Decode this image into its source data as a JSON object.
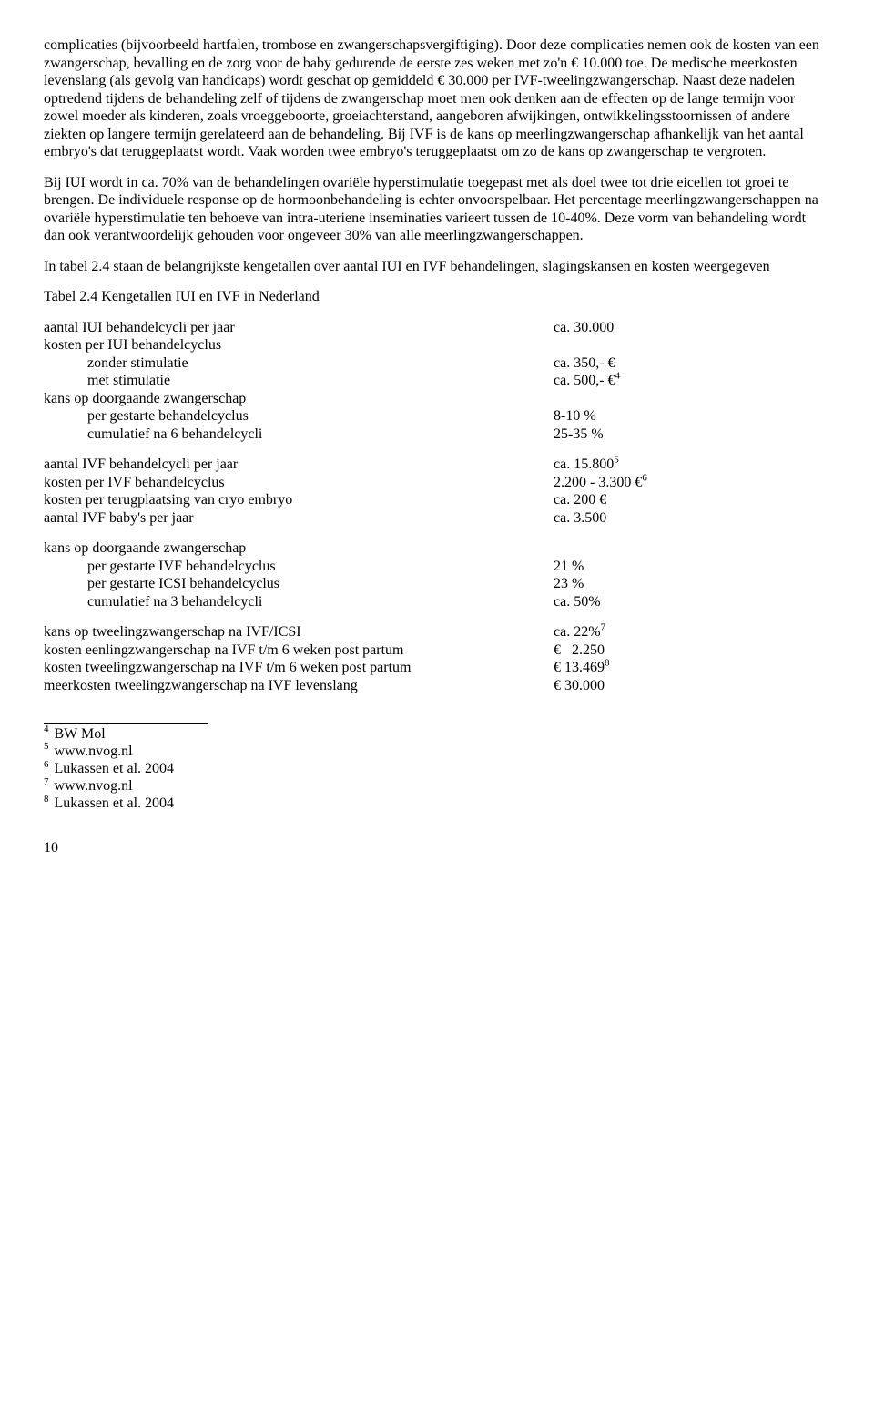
{
  "paragraphs": {
    "p1": "complicaties (bijvoorbeeld hartfalen, trombose en zwangerschapsvergiftiging). Door deze complicaties nemen ook de kosten van een zwangerschap, bevalling en de zorg voor de baby gedurende de eerste zes weken met zo'n € 10.000 toe. De medische meerkosten levenslang (als gevolg van handicaps) wordt geschat op gemiddeld € 30.000 per IVF-tweelingzwangerschap. Naast deze nadelen optredend tijdens de behandeling zelf of tijdens de zwangerschap moet men ook denken aan de effecten op de lange termijn voor zowel moeder als kinderen, zoals vroeggeboorte, groeiachterstand, aangeboren afwijkingen, ontwikkelingsstoornissen of andere ziekten op langere termijn gerelateerd aan de behandeling. Bij IVF is de kans op meerlingzwangerschap afhankelijk van het aantal embryo's dat teruggeplaatst wordt. Vaak worden twee embryo's teruggeplaatst om zo de kans op zwangerschap te vergroten.",
    "p2": "Bij IUI wordt in ca. 70% van de behandelingen ovariële hyperstimulatie toegepast met als doel twee tot drie eicellen tot groei te brengen. De individuele response op de hormoonbehandeling is echter onvoorspelbaar. Het percentage meerlingzwangerschappen na ovariële hyperstimulatie ten behoeve van intra-uteriene inseminaties varieert tussen de 10-40%. Deze vorm van behandeling wordt dan ook verantwoordelijk gehouden voor ongeveer 30% van alle meerlingzwangerschappen.",
    "p3": "In tabel 2.4 staan de belangrijkste kengetallen over aantal IUI en IVF behandelingen, slagingskansen en kosten weergegeven"
  },
  "table_title": "Tabel 2.4 Kengetallen IUI en IVF in Nederland",
  "groups": [
    {
      "rows": [
        {
          "label": "aantal IUI behandelcycli per jaar",
          "value": "ca. 30.000",
          "indent": false
        },
        {
          "label": "kosten per IUI behandelcyclus",
          "value": "",
          "indent": false
        },
        {
          "label": "zonder stimulatie",
          "value": "ca. 350,- €",
          "indent": true
        },
        {
          "label": "met stimulatie",
          "value": "ca. 500,- €",
          "sup": "4",
          "indent": true
        },
        {
          "label": "kans op doorgaande zwangerschap",
          "value": "",
          "indent": false
        },
        {
          "label": "per gestarte behandelcyclus",
          "value": "8-10 %",
          "indent": true
        },
        {
          "label": "cumulatief na 6 behandelcycli",
          "value": "25-35 %",
          "indent": true
        }
      ]
    },
    {
      "rows": [
        {
          "label": "aantal IVF behandelcycli per jaar",
          "value": "ca. 15.800",
          "sup": "5",
          "indent": false
        },
        {
          "label": "kosten per IVF behandelcyclus",
          "value": "2.200 - 3.300 €",
          "sup": "6",
          "indent": false
        },
        {
          "label": "kosten per terugplaatsing van cryo embryo",
          "value": "ca. 200 €",
          "indent": false
        },
        {
          "label": "aantal IVF baby's per jaar",
          "value": "ca. 3.500",
          "indent": false
        }
      ]
    },
    {
      "rows": [
        {
          "label": "kans op doorgaande zwangerschap",
          "value": "",
          "indent": false
        },
        {
          "label": "per gestarte IVF behandelcyclus",
          "value": "21 %",
          "indent": true
        },
        {
          "label": "per gestarte ICSI behandelcyclus",
          "value": "23 %",
          "indent": true
        },
        {
          "label": "cumulatief na 3 behandelcycli",
          "value": "ca. 50%",
          "indent": true
        }
      ]
    },
    {
      "rows": [
        {
          "label": "kans op tweelingzwangerschap na IVF/ICSI",
          "value": "ca. 22%",
          "sup": "7",
          "indent": false
        },
        {
          "label": "kosten eenlingzwangerschap na IVF t/m 6 weken post partum",
          "value": "€   2.250",
          "indent": false
        },
        {
          "label": "kosten tweelingzwangerschap na IVF t/m 6 weken post partum",
          "value": "€ 13.469",
          "sup": "8",
          "indent": false
        },
        {
          "label": "meerkosten tweelingzwangerschap na IVF levenslang",
          "value": "€ 30.000",
          "indent": false
        }
      ]
    }
  ],
  "footnotes": [
    {
      "num": "4",
      "text": "BW Mol"
    },
    {
      "num": "5",
      "text": "www.nvog.nl"
    },
    {
      "num": "6",
      "text": "Lukassen et al. 2004"
    },
    {
      "num": "7",
      "text": "www.nvog.nl"
    },
    {
      "num": "8",
      "text": "Lukassen et al. 2004"
    }
  ],
  "page_number": "10"
}
